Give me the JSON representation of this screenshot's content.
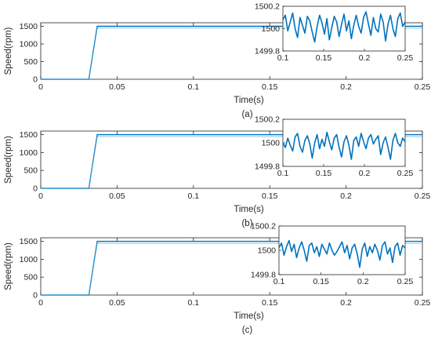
{
  "chart_data": [
    {
      "type": "line",
      "caption": "(a)",
      "xlabel": "Time(s)",
      "ylabel": "Speed(rpm)",
      "xlim": [
        0,
        0.25
      ],
      "ylim": [
        0,
        1600
      ],
      "xticks": [
        0,
        0.05,
        0.1,
        0.15,
        0.2,
        0.25
      ],
      "xtick_labels": [
        "0",
        "0.05",
        "0.1",
        "0.15",
        "0.2",
        "0.25"
      ],
      "yticks": [
        0,
        500,
        1000,
        1500
      ],
      "ytick_labels": [
        "0",
        "500",
        "1000",
        "1500"
      ],
      "series": [
        {
          "color": "#0072BD",
          "x": [
            0,
            0.031,
            0.0315,
            0.037,
            0.25
          ],
          "y": [
            0,
            0,
            0,
            1500,
            1500
          ]
        }
      ],
      "inset": {
        "xlim": [
          0.1,
          0.25
        ],
        "ylim": [
          1499.8,
          1500.2
        ],
        "xticks": [
          0.1,
          0.15,
          0.2,
          0.25
        ],
        "xtick_labels": [
          "0.1",
          "0.15",
          "0.2",
          "0.25"
        ],
        "yticks": [
          1499.8,
          1500,
          1500.2
        ],
        "ytick_labels": [
          "1499.8",
          "1500",
          "1500.2"
        ],
        "series": {
          "color": "#0072BD",
          "x": [
            0.1,
            0.103,
            0.106,
            0.109,
            0.112,
            0.115,
            0.118,
            0.121,
            0.124,
            0.127,
            0.13,
            0.133,
            0.136,
            0.139,
            0.142,
            0.145,
            0.148,
            0.151,
            0.154,
            0.157,
            0.16,
            0.163,
            0.166,
            0.169,
            0.172,
            0.175,
            0.178,
            0.181,
            0.184,
            0.187,
            0.19,
            0.193,
            0.196,
            0.199,
            0.202,
            0.205,
            0.208,
            0.211,
            0.214,
            0.217,
            0.22,
            0.223,
            0.226,
            0.229,
            0.232,
            0.235,
            0.238,
            0.241,
            0.244,
            0.247,
            0.25
          ],
          "y": [
            1500.08,
            1500.12,
            1499.98,
            1500.06,
            1500.14,
            1500.0,
            1499.92,
            1500.1,
            1500.03,
            1499.96,
            1500.11,
            1500.07,
            1499.97,
            1499.88,
            1500.02,
            1500.12,
            1500.05,
            1499.95,
            1500.09,
            1499.9,
            1500.01,
            1500.11,
            1500.06,
            1499.93,
            1500.04,
            1500.13,
            1499.98,
            1500.07,
            1499.91,
            1500.03,
            1500.12,
            1500.02,
            1499.96,
            1500.1,
            1500.15,
            1500.04,
            1499.94,
            1500.1,
            1500.0,
            1499.97,
            1500.13,
            1500.06,
            1499.89,
            1500.04,
            1500.12,
            1500.0,
            1499.93,
            1500.09,
            1500.14,
            1500.02,
            1500.06
          ]
        }
      }
    },
    {
      "type": "line",
      "caption": "(b)",
      "xlabel": "Time(s)",
      "ylabel": "Speed(rpm)",
      "xlim": [
        0,
        0.25
      ],
      "ylim": [
        0,
        1600
      ],
      "xticks": [
        0,
        0.05,
        0.1,
        0.15,
        0.2,
        0.25
      ],
      "xtick_labels": [
        "0",
        "0.05",
        "0.1",
        "0.15",
        "0.2",
        "0.25"
      ],
      "yticks": [
        0,
        500,
        1000,
        1500
      ],
      "ytick_labels": [
        "0",
        "500",
        "1000",
        "1500"
      ],
      "series": [
        {
          "color": "#0072BD",
          "x": [
            0,
            0.031,
            0.0315,
            0.037,
            0.25
          ],
          "y": [
            0,
            0,
            0,
            1500,
            1500
          ]
        }
      ],
      "inset": {
        "xlim": [
          0.1,
          0.25
        ],
        "ylim": [
          1499.8,
          1500.2
        ],
        "xticks": [
          0.1,
          0.15,
          0.2,
          0.25
        ],
        "xtick_labels": [
          "0.1",
          "0.15",
          "0.2",
          "0.25"
        ],
        "yticks": [
          1499.8,
          1500,
          1500.2
        ],
        "ytick_labels": [
          "1499.8",
          "1500",
          "1500.2"
        ],
        "series": {
          "color": "#0072BD",
          "x": [
            0.1,
            0.103,
            0.106,
            0.109,
            0.112,
            0.115,
            0.118,
            0.121,
            0.124,
            0.127,
            0.13,
            0.133,
            0.136,
            0.139,
            0.142,
            0.145,
            0.148,
            0.151,
            0.154,
            0.157,
            0.16,
            0.163,
            0.166,
            0.169,
            0.172,
            0.175,
            0.178,
            0.181,
            0.184,
            0.187,
            0.19,
            0.193,
            0.196,
            0.199,
            0.202,
            0.205,
            0.208,
            0.211,
            0.214,
            0.217,
            0.22,
            0.223,
            0.226,
            0.229,
            0.232,
            0.235,
            0.238,
            0.241,
            0.244,
            0.247,
            0.25
          ],
          "y": [
            1500.0,
            1499.96,
            1500.04,
            1499.98,
            1499.93,
            1500.05,
            1500.08,
            1499.97,
            1499.92,
            1500.02,
            1500.06,
            1499.99,
            1499.87,
            1500.0,
            1500.07,
            1499.95,
            1500.03,
            1499.97,
            1500.09,
            1500.01,
            1499.94,
            1500.04,
            1500.07,
            1499.96,
            1499.88,
            1500.01,
            1500.06,
            1499.98,
            1499.86,
            1500.02,
            1500.05,
            1499.97,
            1500.08,
            1500.01,
            1499.95,
            1500.04,
            1500.07,
            1499.99,
            1500.03,
            1500.06,
            1499.9,
            1500.0,
            1500.05,
            1499.96,
            1499.86,
            1500.02,
            1500.08,
            1500.0,
            1499.97,
            1500.04,
            1500.01
          ]
        }
      }
    },
    {
      "type": "line",
      "caption": "(c)",
      "xlabel": "Time(s)",
      "ylabel": "Speed(rpm)",
      "xlim": [
        0,
        0.25
      ],
      "ylim": [
        0,
        1600
      ],
      "xticks": [
        0,
        0.05,
        0.1,
        0.15,
        0.2,
        0.25
      ],
      "xtick_labels": [
        "0",
        "0.05",
        "0.1",
        "0.15",
        "0.2",
        "0.25"
      ],
      "yticks": [
        0,
        500,
        1000,
        1500
      ],
      "ytick_labels": [
        "0",
        "500",
        "1000",
        "1500"
      ],
      "series": [
        {
          "color": "#0072BD",
          "x": [
            0,
            0.031,
            0.0315,
            0.037,
            0.25
          ],
          "y": [
            0,
            0,
            0,
            1500,
            1500
          ]
        }
      ],
      "inset": {
        "xlim": [
          0.1,
          0.25
        ],
        "ylim": [
          1499.8,
          1500.2
        ],
        "xticks": [
          0.1,
          0.15,
          0.2,
          0.25
        ],
        "xtick_labels": [
          "0.1",
          "0.15",
          "0.2",
          "0.25"
        ],
        "yticks": [
          1499.8,
          1500,
          1500.2
        ],
        "ytick_labels": [
          "1499.8",
          "1500",
          "1500.2"
        ],
        "series": {
          "color": "#0072BD",
          "x": [
            0.1,
            0.103,
            0.106,
            0.109,
            0.112,
            0.115,
            0.118,
            0.121,
            0.124,
            0.127,
            0.13,
            0.133,
            0.136,
            0.139,
            0.142,
            0.145,
            0.148,
            0.151,
            0.154,
            0.157,
            0.16,
            0.163,
            0.166,
            0.169,
            0.172,
            0.175,
            0.178,
            0.181,
            0.184,
            0.187,
            0.19,
            0.193,
            0.196,
            0.199,
            0.202,
            0.205,
            0.208,
            0.211,
            0.214,
            0.217,
            0.22,
            0.223,
            0.226,
            0.229,
            0.232,
            0.235,
            0.238,
            0.241,
            0.244,
            0.247,
            0.25
          ],
          "y": [
            1500.02,
            1500.06,
            1499.96,
            1500.03,
            1500.08,
            1499.99,
            1500.05,
            1499.94,
            1500.02,
            1500.07,
            1500.0,
            1499.91,
            1500.04,
            1500.06,
            1499.98,
            1500.03,
            1499.95,
            1500.05,
            1500.01,
            1499.97,
            1500.06,
            1500.0,
            1499.96,
            1499.99,
            1500.03,
            1500.07,
            1499.98,
            1500.04,
            1499.93,
            1500.02,
            1500.05,
            1499.97,
            1499.86,
            1500.01,
            1500.06,
            1499.95,
            1500.03,
            1499.98,
            1500.05,
            1500.0,
            1499.92,
            1500.04,
            1500.07,
            1499.97,
            1500.02,
            1499.9,
            1500.03,
            1500.06,
            1499.96,
            1500.04,
            1500.02
          ]
        }
      }
    }
  ]
}
